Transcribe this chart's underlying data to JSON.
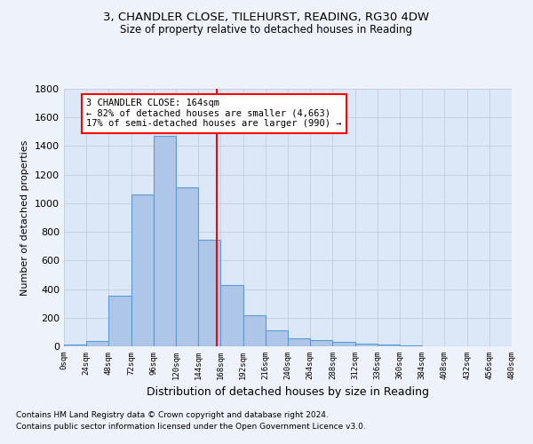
{
  "title_line1": "3, CHANDLER CLOSE, TILEHURST, READING, RG30 4DW",
  "title_line2": "Size of property relative to detached houses in Reading",
  "xlabel": "Distribution of detached houses by size in Reading",
  "ylabel": "Number of detached properties",
  "bin_edges": [
    0,
    24,
    48,
    72,
    96,
    120,
    144,
    168,
    192,
    216,
    240,
    264,
    288,
    312,
    336,
    360,
    384,
    408,
    432,
    456,
    480
  ],
  "bar_heights": [
    10,
    35,
    355,
    1060,
    1470,
    1110,
    745,
    430,
    220,
    110,
    55,
    45,
    30,
    20,
    15,
    5,
    3,
    2,
    1,
    1
  ],
  "bar_color": "#aec6e8",
  "bar_edge_color": "#5b9bd5",
  "property_size": 164,
  "vline_color": "red",
  "annotation_text_line1": "3 CHANDLER CLOSE: 164sqm",
  "annotation_text_line2": "← 82% of detached houses are smaller (4,663)",
  "annotation_text_line3": "17% of semi-detached houses are larger (990) →",
  "annotation_box_color": "white",
  "annotation_box_edge_color": "red",
  "ylim": [
    0,
    1800
  ],
  "yticks": [
    0,
    200,
    400,
    600,
    800,
    1000,
    1200,
    1400,
    1600,
    1800
  ],
  "tick_labels": [
    "0sqm",
    "24sqm",
    "48sqm",
    "72sqm",
    "96sqm",
    "120sqm",
    "144sqm",
    "168sqm",
    "192sqm",
    "216sqm",
    "240sqm",
    "264sqm",
    "288sqm",
    "312sqm",
    "336sqm",
    "360sqm",
    "384sqm",
    "408sqm",
    "432sqm",
    "456sqm",
    "480sqm"
  ],
  "footnote_line1": "Contains HM Land Registry data © Crown copyright and database right 2024.",
  "footnote_line2": "Contains public sector information licensed under the Open Government Licence v3.0.",
  "bg_color": "#eef2fa",
  "grid_color": "#c8d0e0",
  "plot_bg_color": "#dce8f8"
}
